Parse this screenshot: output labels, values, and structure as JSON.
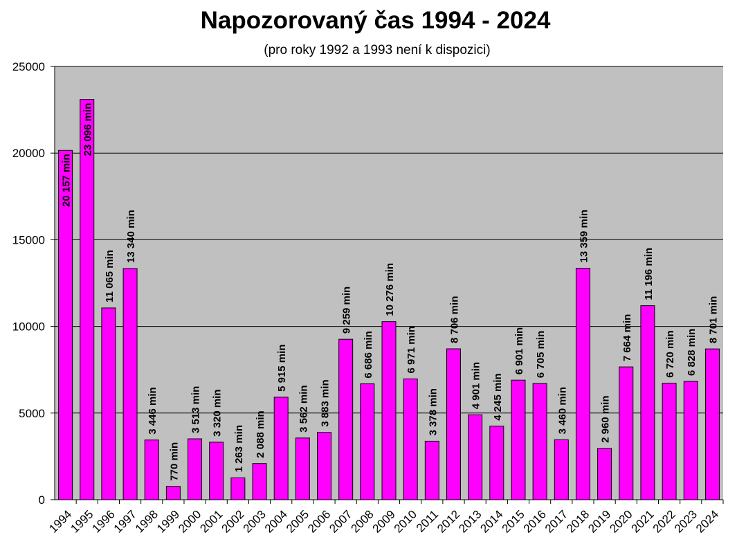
{
  "title": "Napozorovaný čas 1994 - 2024",
  "subtitle": "(pro roky 1992 a 1993 není k dispozici)",
  "chart_data": {
    "type": "bar",
    "title": "Napozorovaný čas 1994 - 2024",
    "subtitle": "(pro roky 1992 a 1993 není k dispozici)",
    "xlabel": "",
    "ylabel": "",
    "categories": [
      "1994",
      "1995",
      "1996",
      "1997",
      "1998",
      "1999",
      "2000",
      "2001",
      "2002",
      "2003",
      "2004",
      "2005",
      "2006",
      "2007",
      "2008",
      "2009",
      "2010",
      "2011",
      "2012",
      "2013",
      "2014",
      "2015",
      "2016",
      "2017",
      "2018",
      "2019",
      "2020",
      "2021",
      "2022",
      "2023",
      "2024"
    ],
    "values": [
      20157,
      23096,
      11065,
      13340,
      3446,
      770,
      3513,
      3320,
      1263,
      2088,
      5915,
      3562,
      3883,
      9259,
      6686,
      10276,
      6971,
      3378,
      8706,
      4901,
      4245,
      6901,
      6705,
      3460,
      13359,
      2960,
      7664,
      11196,
      6720,
      6828,
      8701
    ],
    "data_labels": [
      "20 157 min",
      "23 096 min",
      "11 065 min",
      "13 340 min",
      "3 446 min",
      "770 min",
      "3 513 min",
      "3 320 min",
      "1 263 min",
      "2 088 min",
      "5 915 min",
      "3 562 min",
      "3 883 min",
      "9 259 min",
      "6 686 min",
      "10 276 min",
      "6 971 min",
      "3 378 min",
      "8 706 min",
      "4 901 min",
      "4 245 min",
      "6 901 min",
      "6 705 min",
      "3 460 min",
      "13 359 min",
      "2 960 min",
      "7 664 min",
      "11 196 min",
      "6 720 min",
      "6 828 min",
      "8 701 min"
    ],
    "ylim": [
      0,
      25000
    ],
    "yticks": [
      0,
      5000,
      10000,
      15000,
      20000,
      25000
    ],
    "ytick_labels": [
      "0",
      "5000",
      "10000",
      "15000",
      "20000",
      "25000"
    ],
    "grid": true,
    "legend": "none",
    "colors": {
      "bar_fill": "#ff00ff",
      "bar_stroke": "#000000",
      "plot_background": "#c0c0c0",
      "grid": "#000000"
    }
  }
}
